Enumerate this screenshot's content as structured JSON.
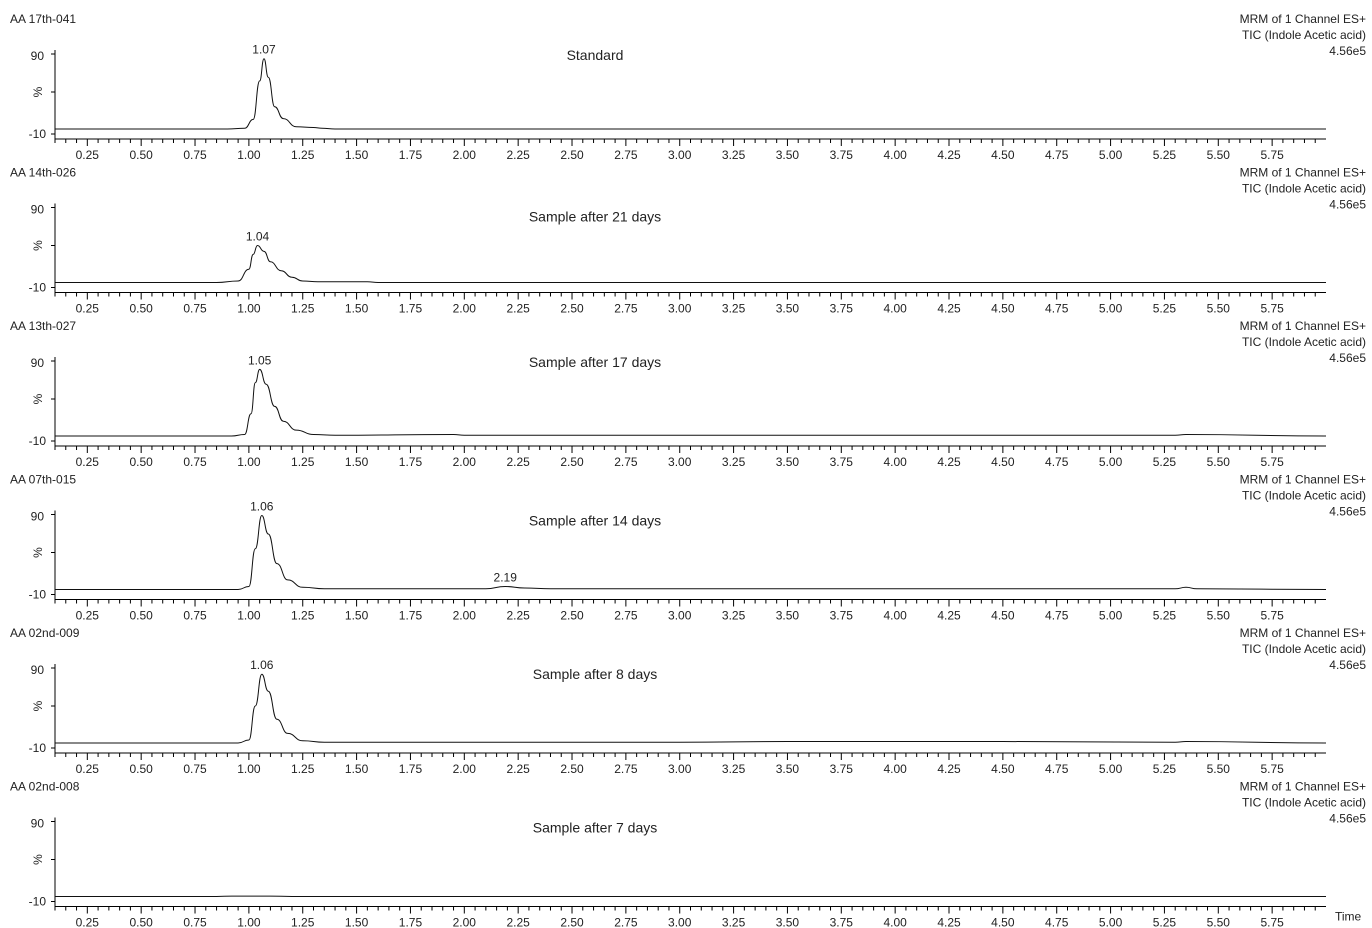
{
  "chart_data": [
    {
      "type": "line",
      "id_label": "AA 17th-041",
      "title": "Standard",
      "meta": [
        "MRM of 1 Channel ES+",
        "TIC (Indole Acetic acid)",
        "4.56e5"
      ],
      "y_ticks": [
        "90",
        "%",
        "-10"
      ],
      "ylim": [
        -10,
        100
      ],
      "xlim": [
        0.1,
        6.0
      ],
      "x_ticks": [
        "0.25",
        "0.50",
        "0.75",
        "1.00",
        "1.25",
        "1.50",
        "1.75",
        "2.00",
        "2.25",
        "2.50",
        "2.75",
        "3.00",
        "3.25",
        "3.50",
        "3.75",
        "4.00",
        "4.25",
        "4.50",
        "4.75",
        "5.00",
        "5.25",
        "5.50",
        "5.75"
      ],
      "peaks": [
        {
          "label": "1.07",
          "x": 1.07,
          "y": 85
        }
      ],
      "series": [
        {
          "x": [
            0.1,
            0.9,
            0.98,
            1.02,
            1.05,
            1.07,
            1.09,
            1.12,
            1.16,
            1.22,
            1.3,
            1.34,
            1.4,
            6.0
          ],
          "y": [
            -10,
            -10,
            -9,
            3,
            55,
            85,
            60,
            20,
            4,
            -7,
            -8,
            -9,
            -10,
            -10
          ]
        }
      ]
    },
    {
      "type": "line",
      "id_label": "AA 14th-026",
      "title": "Sample after 21 days",
      "meta": [
        "MRM of 1 Channel ES+",
        "TIC (Indole Acetic acid)",
        "4.56e5"
      ],
      "y_ticks": [
        "90",
        "%",
        "-10"
      ],
      "ylim": [
        -10,
        100
      ],
      "xlim": [
        0.1,
        6.0
      ],
      "x_ticks": [
        "0.25",
        "0.50",
        "0.75",
        "1.00",
        "1.25",
        "1.50",
        "1.75",
        "2.00",
        "2.25",
        "2.50",
        "2.75",
        "3.00",
        "3.25",
        "3.50",
        "3.75",
        "4.00",
        "4.25",
        "4.50",
        "4.75",
        "5.00",
        "5.25",
        "5.50",
        "5.75"
      ],
      "peaks": [
        {
          "label": "1.04",
          "x": 1.04,
          "y": 40
        }
      ],
      "series": [
        {
          "x": [
            0.1,
            0.85,
            0.95,
            1.0,
            1.02,
            1.04,
            1.07,
            1.1,
            1.15,
            1.2,
            1.25,
            1.32,
            1.45,
            1.55,
            1.6,
            6.0
          ],
          "y": [
            -10,
            -10,
            -8,
            8,
            28,
            40,
            32,
            18,
            6,
            -3,
            -8,
            -9,
            -9,
            -9,
            -10,
            -10
          ]
        }
      ]
    },
    {
      "type": "line",
      "id_label": "AA 13th-027",
      "title": "Sample after 17 days",
      "meta": [
        "MRM of 1 Channel ES+",
        "TIC (Indole Acetic acid)",
        "4.56e5"
      ],
      "y_ticks": [
        "90",
        "%",
        "-10"
      ],
      "ylim": [
        -10,
        100
      ],
      "xlim": [
        0.1,
        6.0
      ],
      "x_ticks": [
        "0.25",
        "0.50",
        "0.75",
        "1.00",
        "1.25",
        "1.50",
        "1.75",
        "2.00",
        "2.25",
        "2.50",
        "2.75",
        "3.00",
        "3.25",
        "3.50",
        "3.75",
        "4.00",
        "4.25",
        "4.50",
        "4.75",
        "5.00",
        "5.25",
        "5.50",
        "5.75"
      ],
      "peaks": [
        {
          "label": "1.05",
          "x": 1.05,
          "y": 80
        }
      ],
      "series": [
        {
          "x": [
            0.1,
            0.92,
            0.98,
            1.01,
            1.03,
            1.05,
            1.08,
            1.12,
            1.16,
            1.22,
            1.3,
            1.4,
            1.95,
            2.0,
            2.6,
            2.8,
            5.3,
            5.35,
            6.0
          ],
          "y": [
            -10,
            -10,
            -8,
            20,
            62,
            80,
            60,
            30,
            10,
            -2,
            -8,
            -9,
            -8,
            -9,
            -9,
            -9,
            -9,
            -8,
            -10
          ]
        }
      ]
    },
    {
      "type": "line",
      "id_label": "AA 07th-015",
      "title": "Sample after 14 days",
      "meta": [
        "MRM of 1 Channel ES+",
        "TIC (Indole Acetic acid)",
        "4.56e5"
      ],
      "y_ticks": [
        "90",
        "%",
        "-10"
      ],
      "ylim": [
        -10,
        100
      ],
      "xlim": [
        0.1,
        6.0
      ],
      "x_ticks": [
        "0.25",
        "0.50",
        "0.75",
        "1.00",
        "1.25",
        "1.50",
        "1.75",
        "2.00",
        "2.25",
        "2.50",
        "2.75",
        "3.00",
        "3.25",
        "3.50",
        "3.75",
        "4.00",
        "4.25",
        "4.50",
        "4.75",
        "5.00",
        "5.25",
        "5.50",
        "5.75"
      ],
      "peaks": [
        {
          "label": "1.06",
          "x": 1.06,
          "y": 90
        },
        {
          "label": "2.19",
          "x": 2.19,
          "y": -6
        }
      ],
      "series": [
        {
          "x": [
            0.1,
            0.95,
            1.0,
            1.03,
            1.06,
            1.09,
            1.13,
            1.18,
            1.25,
            1.35,
            2.1,
            2.19,
            2.28,
            2.4,
            5.3,
            5.35,
            5.4,
            6.0
          ],
          "y": [
            -10,
            -10,
            -6,
            45,
            90,
            65,
            25,
            3,
            -7,
            -9,
            -9,
            -6,
            -8,
            -9,
            -9,
            -7,
            -9,
            -10
          ]
        }
      ]
    },
    {
      "type": "line",
      "id_label": "AA 02nd-009",
      "title": "Sample after 8 days",
      "meta": [
        "MRM of 1 Channel ES+",
        "TIC (Indole Acetic acid)",
        "4.56e5"
      ],
      "y_ticks": [
        "90",
        "%",
        "-10"
      ],
      "ylim": [
        -10,
        100
      ],
      "xlim": [
        0.1,
        6.0
      ],
      "x_ticks": [
        "0.25",
        "0.50",
        "0.75",
        "1.00",
        "1.25",
        "1.50",
        "1.75",
        "2.00",
        "2.25",
        "2.50",
        "2.75",
        "3.00",
        "3.25",
        "3.50",
        "3.75",
        "4.00",
        "4.25",
        "4.50",
        "4.75",
        "5.00",
        "5.25",
        "5.50",
        "5.75"
      ],
      "peaks": [
        {
          "label": "1.06",
          "x": 1.06,
          "y": 83
        }
      ],
      "series": [
        {
          "x": [
            0.1,
            0.95,
            1.0,
            1.03,
            1.06,
            1.09,
            1.13,
            1.18,
            1.25,
            1.35,
            3.0,
            3.5,
            4.5,
            5.3,
            5.35,
            6.0
          ],
          "y": [
            -10,
            -10,
            -6,
            40,
            83,
            60,
            22,
            3,
            -7,
            -9,
            -9,
            -8,
            -8,
            -9,
            -8,
            -10
          ]
        }
      ]
    },
    {
      "type": "line",
      "id_label": "AA 02nd-008",
      "title": "Sample after 7 days",
      "meta": [
        "MRM of 1 Channel ES+",
        "TIC (Indole Acetic acid)",
        "4.56e5"
      ],
      "y_ticks": [
        "90",
        "%",
        "-10"
      ],
      "ylim": [
        -10,
        100
      ],
      "xlim": [
        0.1,
        6.0
      ],
      "x_ticks": [
        "0.25",
        "0.50",
        "0.75",
        "1.00",
        "1.25",
        "1.50",
        "1.75",
        "2.00",
        "2.25",
        "2.50",
        "2.75",
        "3.00",
        "3.25",
        "3.50",
        "3.75",
        "4.00",
        "4.25",
        "4.50",
        "4.75",
        "5.00",
        "5.25",
        "5.50",
        "5.75"
      ],
      "xlabel": "Time",
      "peaks": [],
      "series": [
        {
          "x": [
            0.1,
            0.85,
            0.92,
            1.1,
            1.2,
            6.0
          ],
          "y": [
            -10,
            -10,
            -9.5,
            -9.5,
            -10,
            -10
          ]
        }
      ]
    }
  ]
}
